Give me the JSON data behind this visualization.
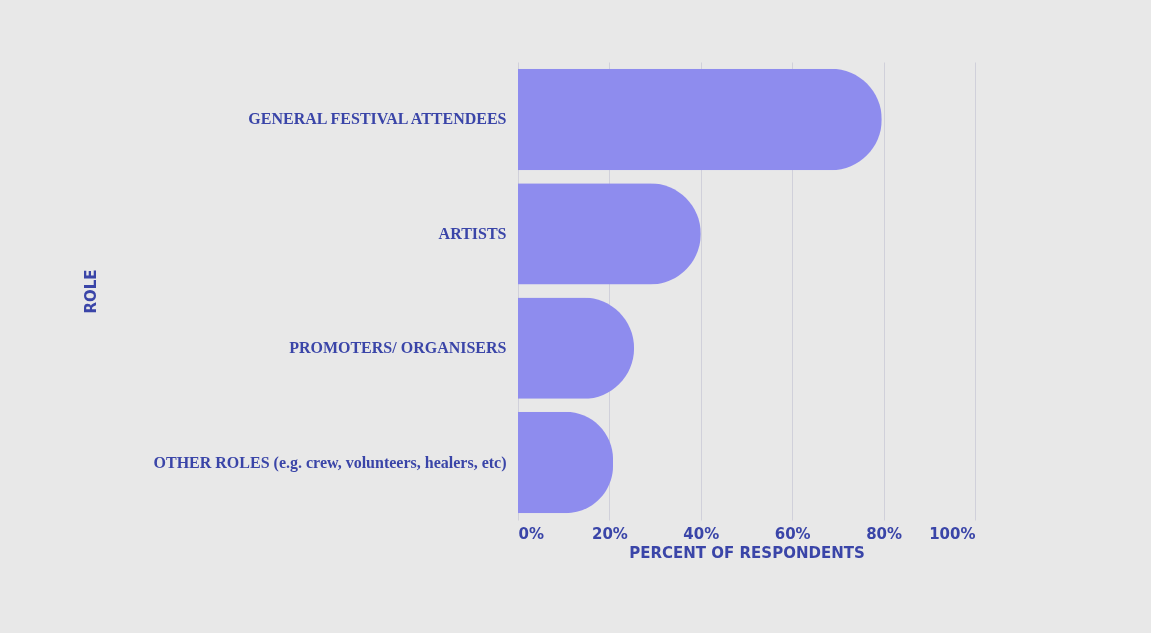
{
  "chart_data": {
    "type": "bar",
    "orientation": "horizontal",
    "categories": [
      "GENERAL FESTIVAL ATTENDEES",
      "ARTISTS",
      "PROMOTERS/ ORGANISERS",
      "OTHER ROLES (e.g. crew, volunteers, healers, etc)"
    ],
    "values": [
      79.6,
      40,
      25.4,
      20.8
    ],
    "color": "#8e8cee",
    "xlim": [
      0,
      100
    ],
    "xticks": [
      {
        "value": 0,
        "label": "0%"
      },
      {
        "value": 20,
        "label": "20%"
      },
      {
        "value": 40,
        "label": "40%"
      },
      {
        "value": 60,
        "label": "60%"
      },
      {
        "value": 80,
        "label": "80%"
      },
      {
        "value": 100,
        "label": "100%"
      }
    ],
    "xlabel": "PERCENT OF RESPONDENTS",
    "ylabel": "ROLE",
    "grid": "x"
  }
}
